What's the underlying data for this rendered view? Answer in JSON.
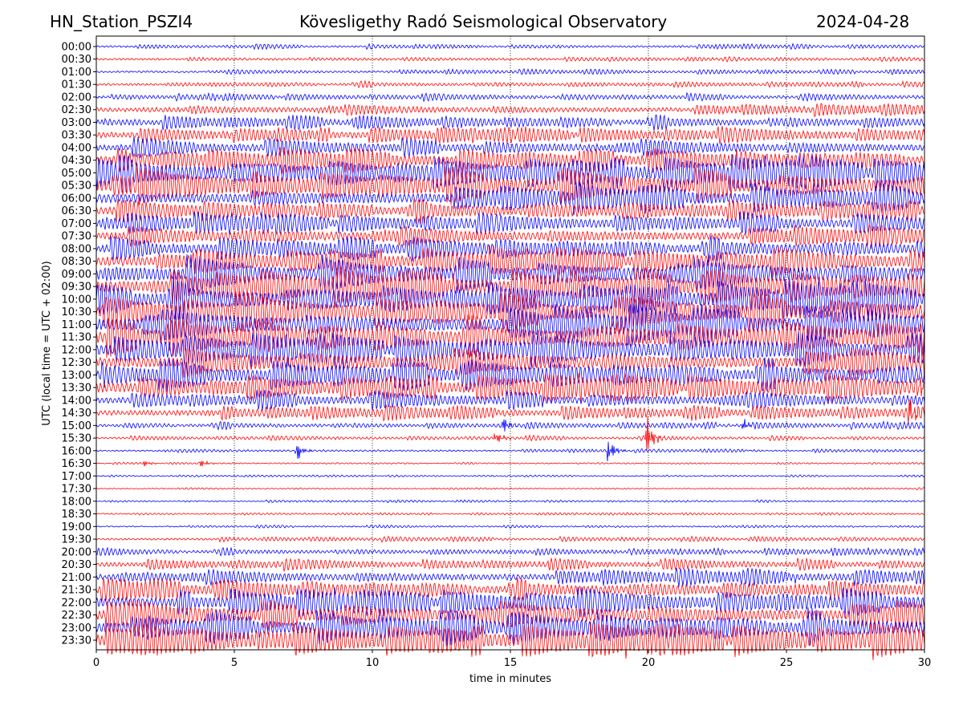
{
  "header": {
    "station": "HN_Station_PSZI4",
    "observatory": "Kövesligethy Radó Seismological Observatory",
    "date": "2024-04-28"
  },
  "chart_data": {
    "type": "line",
    "title": "Kövesligethy Radó Seismological Observatory",
    "xlabel": "time in minutes",
    "ylabel": "UTC (local time = UTC + 02:00)",
    "xlim": [
      0,
      30
    ],
    "xticks": [
      "0",
      "5",
      "10",
      "15",
      "20",
      "25",
      "30"
    ],
    "grid": "vertical dotted",
    "series_colors": [
      "#0000ff",
      "#ff0000"
    ],
    "rows": [
      {
        "label": "00:00",
        "activity": 0.2
      },
      {
        "label": "00:30",
        "activity": 0.2
      },
      {
        "label": "01:00",
        "activity": 0.2
      },
      {
        "label": "01:30",
        "activity": 0.25
      },
      {
        "label": "02:00",
        "activity": 0.3
      },
      {
        "label": "02:30",
        "activity": 0.5
      },
      {
        "label": "03:00",
        "activity": 0.6
      },
      {
        "label": "03:30",
        "activity": 0.7
      },
      {
        "label": "04:00",
        "activity": 0.8
      },
      {
        "label": "04:30",
        "activity": 1.0
      },
      {
        "label": "05:00",
        "activity": 1.5
      },
      {
        "label": "05:30",
        "activity": 1.5
      },
      {
        "label": "06:00",
        "activity": 1.2
      },
      {
        "label": "06:30",
        "activity": 1.0
      },
      {
        "label": "07:00",
        "activity": 0.9
      },
      {
        "label": "07:30",
        "activity": 0.9
      },
      {
        "label": "08:00",
        "activity": 1.0
      },
      {
        "label": "08:30",
        "activity": 1.2
      },
      {
        "label": "09:00",
        "activity": 1.5
      },
      {
        "label": "09:30",
        "activity": 1.5
      },
      {
        "label": "10:00",
        "activity": 1.6
      },
      {
        "label": "10:30",
        "activity": 1.6
      },
      {
        "label": "11:00",
        "activity": 1.6
      },
      {
        "label": "11:30",
        "activity": 1.6
      },
      {
        "label": "12:00",
        "activity": 1.4
      },
      {
        "label": "12:30",
        "activity": 1.3
      },
      {
        "label": "13:00",
        "activity": 1.3
      },
      {
        "label": "13:30",
        "activity": 1.2
      },
      {
        "label": "14:00",
        "activity": 0.8
      },
      {
        "label": "14:30",
        "activity": 0.6
      },
      {
        "label": "15:00",
        "activity": 0.3
      },
      {
        "label": "15:30",
        "activity": 0.2
      },
      {
        "label": "16:00",
        "activity": 0.15
      },
      {
        "label": "16:30",
        "activity": 0.08
      },
      {
        "label": "17:00",
        "activity": 0.08
      },
      {
        "label": "17:30",
        "activity": 0.08
      },
      {
        "label": "18:00",
        "activity": 0.1
      },
      {
        "label": "18:30",
        "activity": 0.1
      },
      {
        "label": "19:00",
        "activity": 0.12
      },
      {
        "label": "19:30",
        "activity": 0.2
      },
      {
        "label": "20:00",
        "activity": 0.3
      },
      {
        "label": "20:30",
        "activity": 0.5
      },
      {
        "label": "21:00",
        "activity": 0.7
      },
      {
        "label": "21:30",
        "activity": 0.9
      },
      {
        "label": "22:00",
        "activity": 1.2
      },
      {
        "label": "22:30",
        "activity": 1.3
      },
      {
        "label": "23:00",
        "activity": 1.4
      },
      {
        "label": "23:30",
        "activity": 1.5
      }
    ],
    "events": [
      {
        "row": "13:30",
        "minute": 29.8,
        "amplitude": 0.6
      },
      {
        "row": "14:30",
        "minute": 29.5,
        "amplitude": 0.7
      },
      {
        "row": "15:00",
        "minute": 14.8,
        "amplitude": 0.5
      },
      {
        "row": "15:00",
        "minute": 23.5,
        "amplitude": 0.3
      },
      {
        "row": "15:30",
        "minute": 14.5,
        "amplitude": 0.4
      },
      {
        "row": "15:30",
        "minute": 20.0,
        "amplitude": 1.1
      },
      {
        "row": "16:00",
        "minute": 7.3,
        "amplitude": 0.6
      },
      {
        "row": "16:00",
        "minute": 18.6,
        "amplitude": 0.7
      },
      {
        "row": "16:30",
        "minute": 3.8,
        "amplitude": 0.25
      },
      {
        "row": "16:30",
        "minute": 1.8,
        "amplitude": 0.2
      }
    ]
  }
}
